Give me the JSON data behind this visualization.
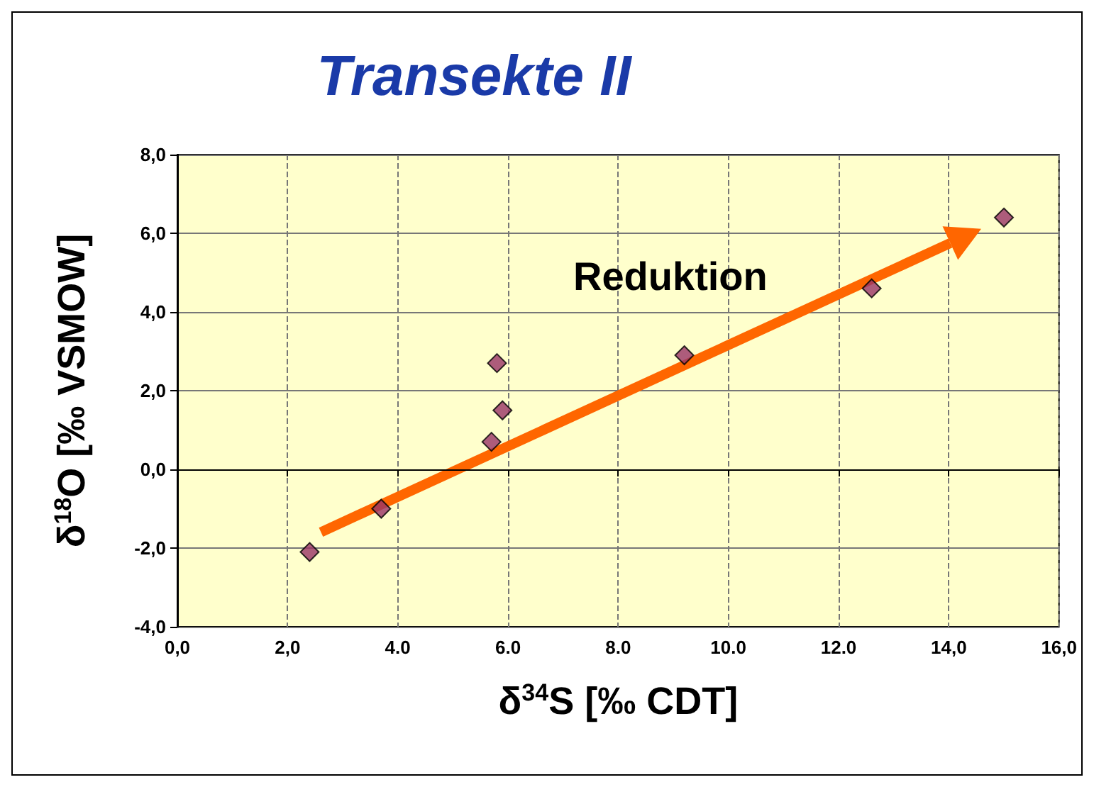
{
  "chart_data": {
    "type": "scatter",
    "title": "Transekte II",
    "xlabel": "δ$^{34}$S [‰ CDT]",
    "ylabel": "δ$^{18}$O [‰ VSMOW]",
    "x": [
      2.4,
      3.7,
      5.7,
      5.9,
      5.8,
      9.2,
      12.6,
      15.0
    ],
    "series": [
      {
        "color": "#993366",
        "values": [
          -2.1,
          -1.0,
          0.7,
          1.5,
          2.7,
          2.9,
          4.6,
          6.4
        ]
      }
    ],
    "xlim": [
      0,
      16
    ],
    "ylim": [
      -4,
      8
    ],
    "xticks": [
      {
        "value": 0,
        "label": "0,0"
      },
      {
        "value": 2,
        "label": "2,0"
      },
      {
        "value": 4,
        "label": "4.0"
      },
      {
        "value": 6,
        "label": "6.0"
      },
      {
        "value": 8,
        "label": "8.0"
      },
      {
        "value": 10,
        "label": "10.0"
      },
      {
        "value": 12,
        "label": "12.0"
      },
      {
        "value": 14,
        "label": "14,0"
      },
      {
        "value": 16,
        "label": "16,0"
      }
    ],
    "yticks": [
      {
        "value": -4,
        "label": "-4,0"
      },
      {
        "value": -2,
        "label": "-2,0"
      },
      {
        "value": 0,
        "label": "0,0"
      },
      {
        "value": 2,
        "label": "2,0"
      },
      {
        "value": 4,
        "label": "4,0"
      },
      {
        "value": 6,
        "label": "6,0"
      },
      {
        "value": 8,
        "label": "8,0"
      }
    ],
    "annotations": [
      "Reduktion"
    ],
    "grid": true,
    "marker": "diamond"
  }
}
